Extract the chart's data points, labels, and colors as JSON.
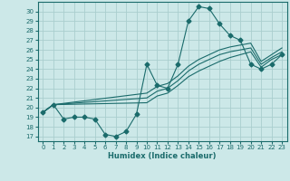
{
  "title": "",
  "xlabel": "Humidex (Indice chaleur)",
  "bg_color": "#cce8e8",
  "line_color": "#1a6b6b",
  "grid_color": "#aacece",
  "xlim": [
    -0.5,
    23.5
  ],
  "ylim": [
    16.5,
    31.0
  ],
  "xticks": [
    0,
    1,
    2,
    3,
    4,
    5,
    6,
    7,
    8,
    9,
    10,
    11,
    12,
    13,
    14,
    15,
    16,
    17,
    18,
    19,
    20,
    21,
    22,
    23
  ],
  "yticks": [
    17,
    18,
    19,
    20,
    21,
    22,
    23,
    24,
    25,
    26,
    27,
    28,
    29,
    30
  ],
  "series": [
    {
      "x": [
        0,
        1,
        2,
        3,
        4,
        5,
        6,
        7,
        8,
        9,
        10,
        11,
        12,
        13,
        14,
        15,
        16,
        17,
        18,
        19,
        20,
        21,
        22,
        23
      ],
      "y": [
        19.5,
        20.3,
        18.8,
        19.0,
        19.0,
        18.8,
        17.2,
        17.0,
        17.5,
        19.3,
        24.5,
        22.3,
        22.0,
        24.5,
        29.0,
        30.5,
        30.3,
        28.7,
        27.5,
        27.0,
        24.5,
        24.0,
        24.5,
        25.5
      ],
      "marker": "D",
      "markersize": 2.5
    },
    {
      "x": [
        0,
        1,
        10,
        11,
        12,
        13,
        14,
        15,
        16,
        17,
        18,
        19,
        20,
        21,
        22,
        23
      ],
      "y": [
        19.5,
        20.3,
        20.5,
        21.2,
        21.5,
        22.3,
        23.2,
        23.8,
        24.3,
        24.8,
        25.2,
        25.5,
        25.8,
        24.2,
        25.0,
        25.5
      ],
      "marker": null
    },
    {
      "x": [
        0,
        1,
        10,
        11,
        12,
        13,
        14,
        15,
        16,
        17,
        18,
        19,
        20,
        21,
        22,
        23
      ],
      "y": [
        19.5,
        20.3,
        21.0,
        21.7,
        22.0,
        22.8,
        23.8,
        24.5,
        25.0,
        25.5,
        25.8,
        26.0,
        26.2,
        24.5,
        25.2,
        25.8
      ],
      "marker": null
    },
    {
      "x": [
        0,
        1,
        10,
        11,
        12,
        13,
        14,
        15,
        16,
        17,
        18,
        19,
        20,
        21,
        22,
        23
      ],
      "y": [
        19.5,
        20.3,
        21.5,
        22.2,
        22.5,
        23.3,
        24.3,
        25.0,
        25.5,
        26.0,
        26.3,
        26.5,
        26.7,
        24.8,
        25.5,
        26.2
      ],
      "marker": null
    }
  ]
}
